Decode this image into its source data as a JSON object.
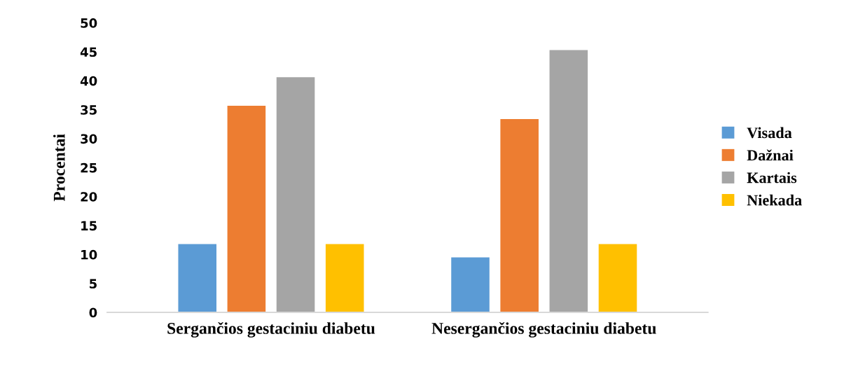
{
  "chart_data": {
    "type": "bar",
    "ylabel": "Procentai",
    "categories": [
      "Sergančios gestaciniu diabetu",
      "Nesergančios gestaciniu diabetu"
    ],
    "series": [
      {
        "name": "Visada",
        "color": "#5b9bd5",
        "values": [
          11.8,
          9.5
        ]
      },
      {
        "name": "Dažnai",
        "color": "#ed7d31",
        "values": [
          35.7,
          33.4
        ]
      },
      {
        "name": "Kartais",
        "color": "#a5a5a5",
        "values": [
          40.6,
          45.3
        ]
      },
      {
        "name": "Niekada",
        "color": "#ffc000",
        "values": [
          11.8,
          11.8
        ]
      }
    ],
    "ylim": [
      0,
      50
    ],
    "yticks": [
      0,
      5,
      10,
      15,
      20,
      25,
      30,
      35,
      40,
      45,
      50
    ],
    "grid": false,
    "legend": "right"
  }
}
